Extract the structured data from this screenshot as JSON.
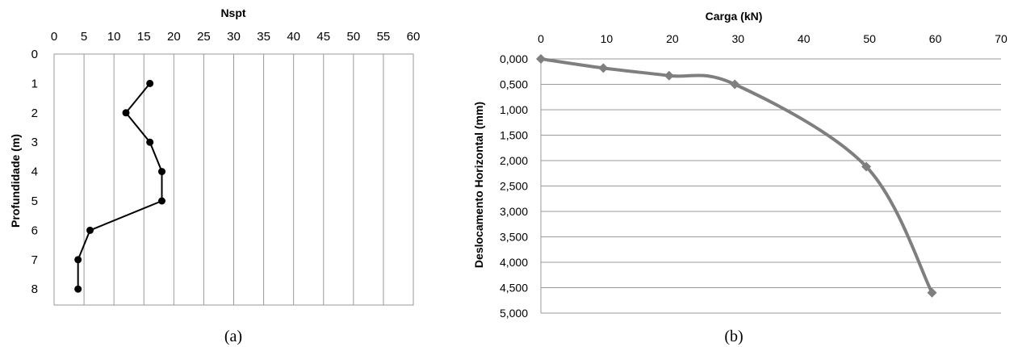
{
  "chart_data": [
    {
      "type": "line",
      "caption": "(a)",
      "xlabel": "Nspt",
      "ylabel": "Profundidade (m)",
      "xlim": [
        0,
        60
      ],
      "ylim": [
        0,
        8
      ],
      "x_axis_position": "top",
      "y_axis_inverted": true,
      "x_ticks": [
        "0",
        "5",
        "10",
        "15",
        "20",
        "25",
        "30",
        "35",
        "40",
        "45",
        "50",
        "55",
        "60"
      ],
      "y_ticks": [
        "0",
        "1",
        "2",
        "3",
        "4",
        "5",
        "6",
        "7",
        "8"
      ],
      "grid": "vertical",
      "series": [
        {
          "x": [
            16,
            12,
            16,
            18,
            18,
            6,
            4,
            4
          ],
          "y": [
            1,
            2,
            3,
            4,
            5,
            6,
            7,
            8
          ],
          "color": "#000000",
          "marker": "circle"
        }
      ]
    },
    {
      "type": "line",
      "caption": "(b)",
      "xlabel": "Carga (kN)",
      "ylabel": "Deslocamento Horizontal (mm)",
      "xlim": [
        0,
        70
      ],
      "ylim": [
        0,
        5
      ],
      "x_axis_position": "top",
      "y_axis_inverted": true,
      "x_ticks": [
        "0",
        "10",
        "20",
        "30",
        "40",
        "50",
        "60",
        "70"
      ],
      "y_ticks": [
        "0,000",
        "0,500",
        "1,000",
        "1,500",
        "2,000",
        "2,500",
        "3,000",
        "3,500",
        "4,000",
        "4,500",
        "5,000"
      ],
      "grid": "horizontal",
      "series": [
        {
          "x": [
            0,
            9.5,
            19.5,
            29.5,
            49.5,
            59.5
          ],
          "y": [
            0.0,
            0.18,
            0.33,
            0.5,
            2.12,
            4.6
          ],
          "color": "#7f7f7f",
          "marker": "diamond",
          "smooth": true
        }
      ]
    }
  ]
}
